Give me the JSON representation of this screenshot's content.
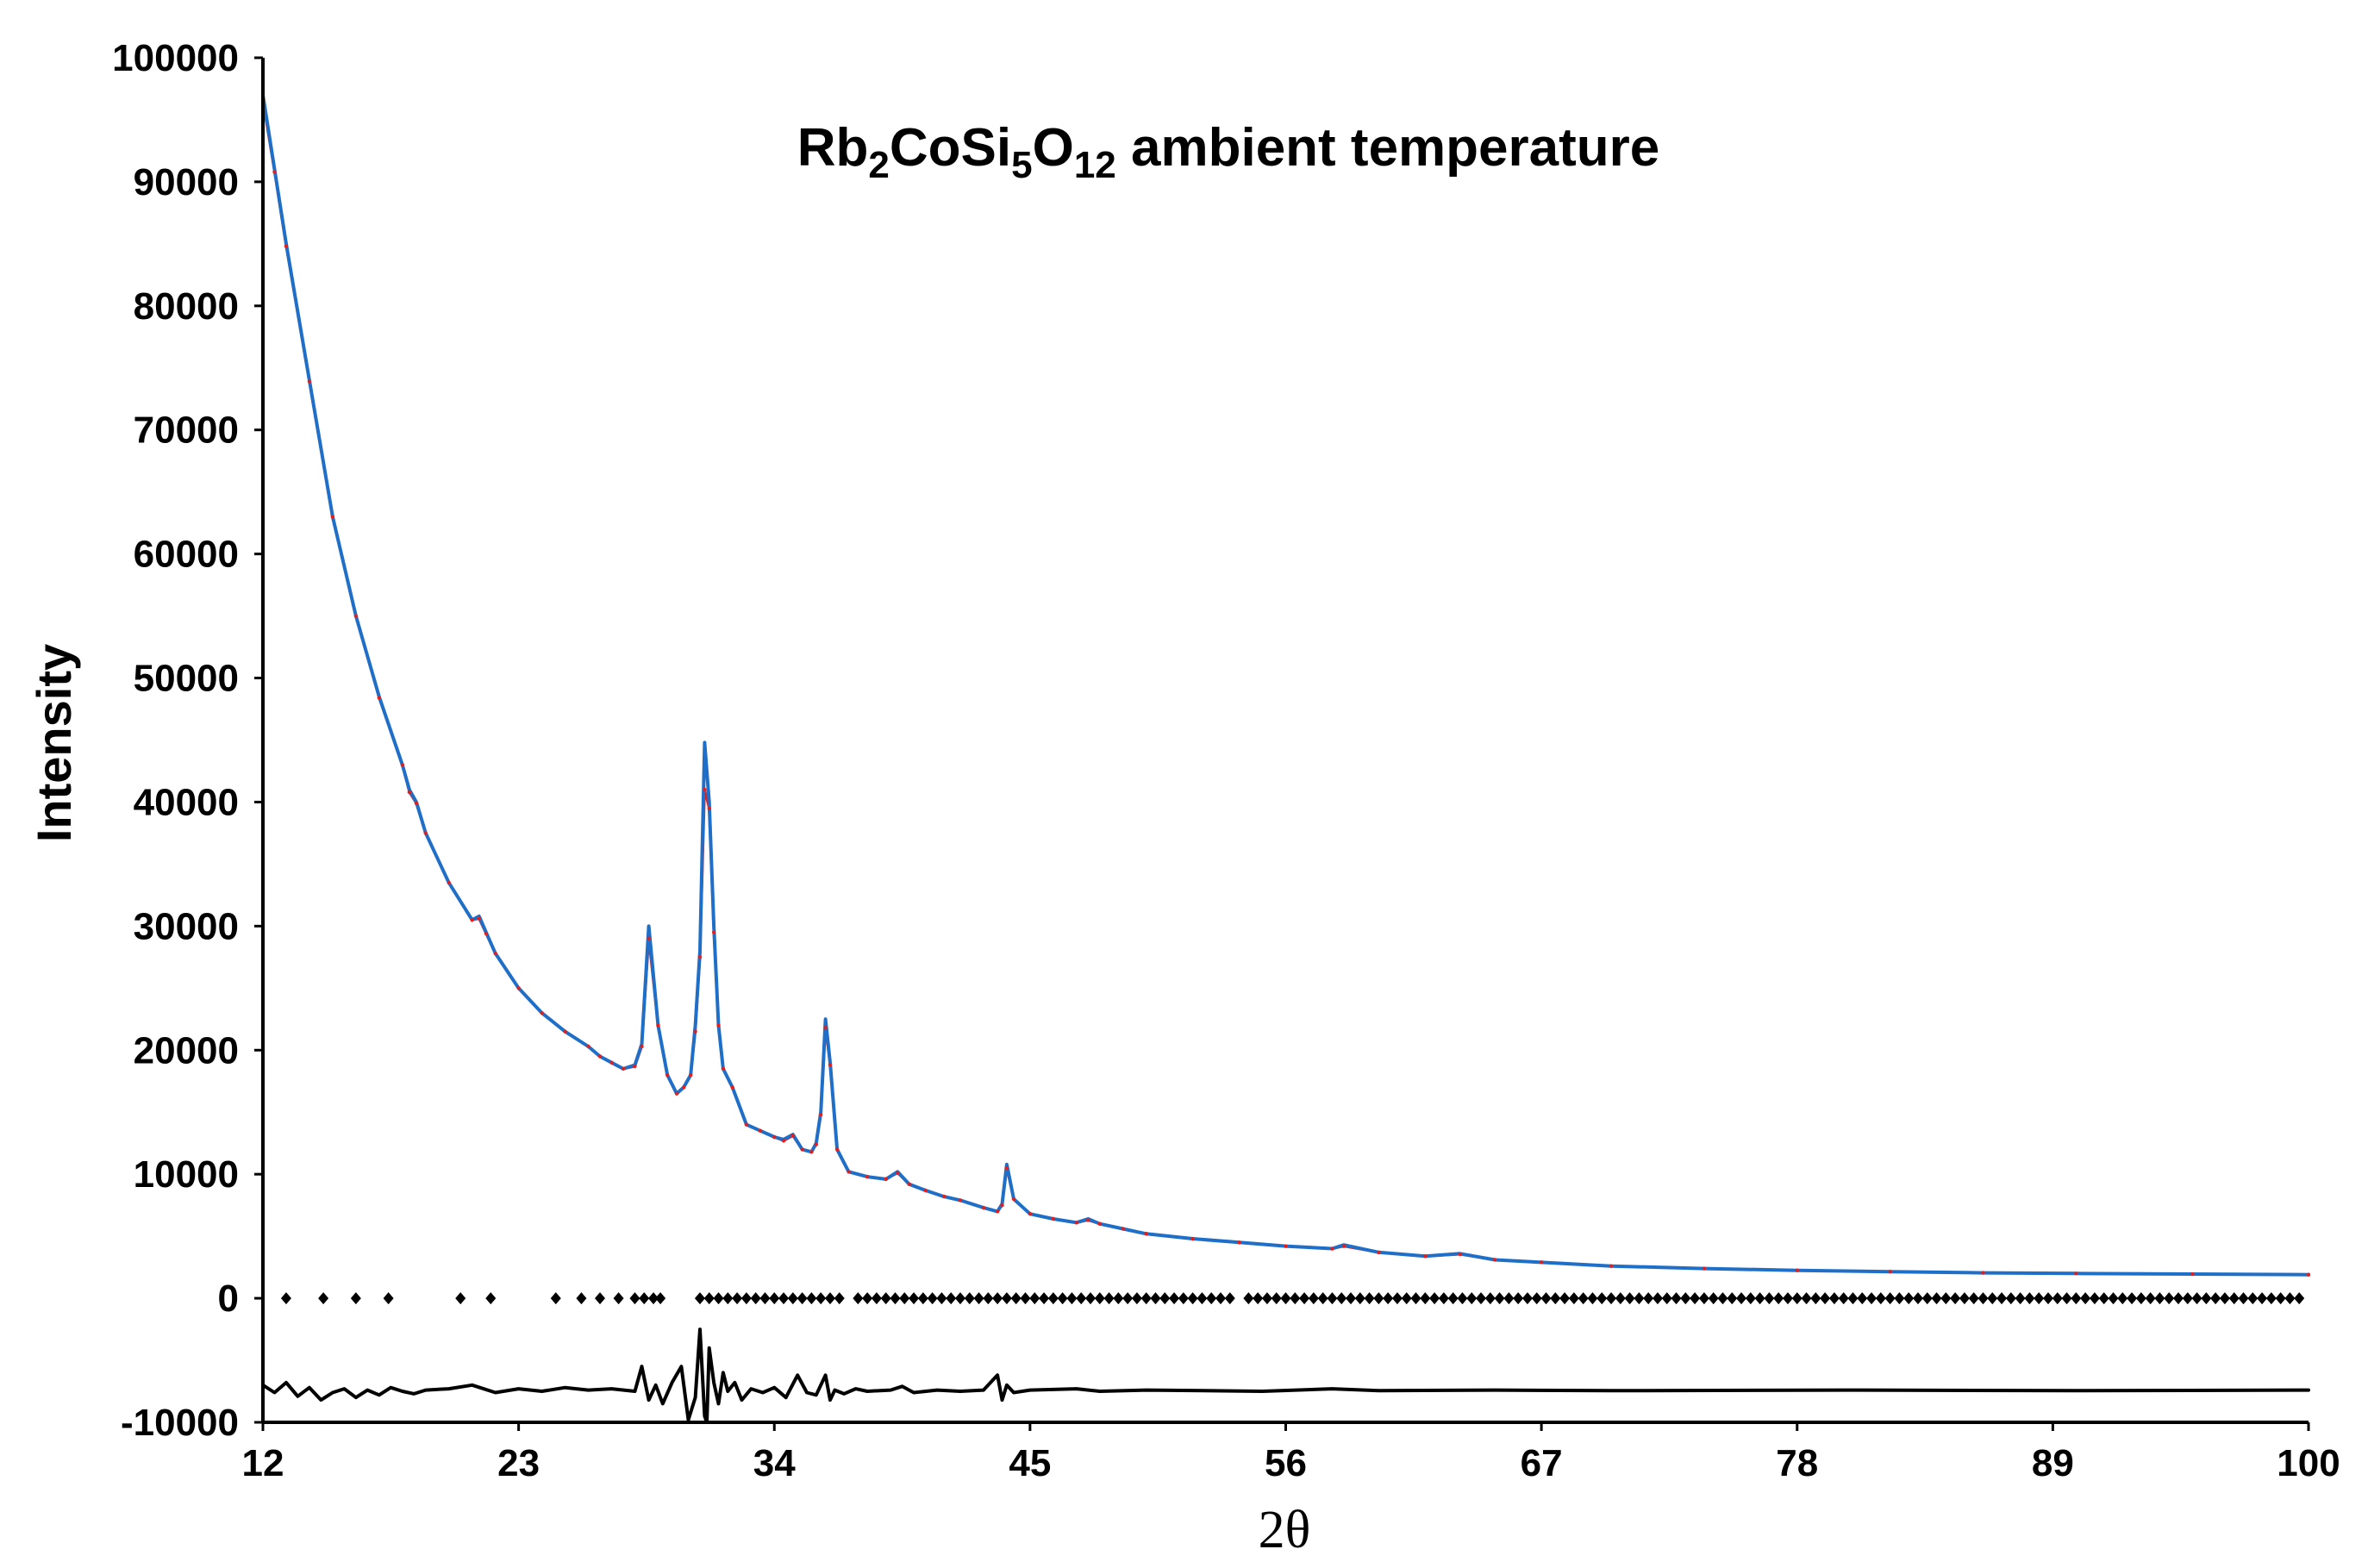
{
  "chart_data": {
    "type": "line",
    "title_main": "Rb",
    "title_parts": [
      {
        "text": "Rb",
        "sub": false
      },
      {
        "text": "2",
        "sub": true
      },
      {
        "text": "CoSi",
        "sub": false
      },
      {
        "text": "5",
        "sub": true
      },
      {
        "text": "O",
        "sub": false
      },
      {
        "text": "12",
        "sub": true
      },
      {
        "text": " ambient temperature",
        "sub": false
      }
    ],
    "xlabel": "2θ",
    "ylabel": "Intensity",
    "xlim": [
      12,
      100
    ],
    "ylim": [
      -10000,
      100000
    ],
    "xticks": [
      12,
      23,
      34,
      45,
      56,
      67,
      78,
      89,
      100
    ],
    "yticks": [
      -10000,
      0,
      10000,
      20000,
      30000,
      40000,
      50000,
      60000,
      70000,
      80000,
      90000,
      100000
    ],
    "grid": false,
    "legend": "none",
    "colors": {
      "observed": "#1f6fc8",
      "calculated": "#e02020",
      "difference": "#000000",
      "reflections": "#000000"
    },
    "series": [
      {
        "role": "observed",
        "x": [
          12,
          12.5,
          13,
          14,
          15,
          16,
          17,
          18,
          18.3,
          18.6,
          19,
          20,
          21,
          21.3,
          21.6,
          22,
          23,
          24,
          25,
          26,
          26.5,
          27,
          27.5,
          28,
          28.3,
          28.6,
          29.0,
          29.4,
          29.8,
          30.1,
          30.4,
          30.6,
          30.8,
          31.0,
          31.2,
          31.4,
          31.6,
          31.8,
          32.2,
          32.8,
          33.4,
          34.0,
          34.4,
          34.8,
          35.2,
          35.6,
          35.8,
          36.0,
          36.2,
          36.4,
          36.7,
          37.2,
          38,
          38.8,
          39.3,
          39.8,
          40.5,
          41.3,
          42,
          43,
          43.6,
          43.8,
          44.0,
          44.3,
          45,
          46,
          47,
          47.5,
          48,
          49,
          50,
          52,
          54,
          56,
          58,
          58.5,
          60,
          62,
          63.5,
          65,
          67,
          70,
          74,
          78,
          82,
          86,
          90,
          95,
          100
        ],
        "y": [
          97000,
          91000,
          85000,
          74000,
          63000,
          55000,
          48500,
          43000,
          41000,
          40000,
          37500,
          33500,
          30500,
          30800,
          29500,
          27800,
          25000,
          23000,
          21500,
          20300,
          19500,
          19000,
          18500,
          18800,
          20500,
          30000,
          22000,
          18000,
          16500,
          17000,
          18000,
          22000,
          28000,
          44800,
          40000,
          30000,
          22000,
          18500,
          17000,
          14000,
          13500,
          13000,
          12800,
          13200,
          12000,
          11800,
          12500,
          15000,
          22500,
          19000,
          12000,
          10200,
          9800,
          9600,
          10200,
          9200,
          8700,
          8200,
          7900,
          7300,
          7000,
          7600,
          10800,
          8000,
          6800,
          6400,
          6100,
          6400,
          6000,
          5600,
          5200,
          4800,
          4500,
          4200,
          4000,
          4300,
          3700,
          3400,
          3600,
          3100,
          2900,
          2600,
          2400,
          2250,
          2150,
          2050,
          2000,
          1950,
          1900
        ]
      },
      {
        "role": "calculated",
        "x": [
          12,
          12.5,
          13,
          14,
          15,
          16,
          17,
          18,
          18.3,
          18.6,
          19,
          20,
          21,
          21.3,
          21.6,
          22,
          23,
          24,
          25,
          26,
          26.5,
          27,
          27.5,
          28,
          28.3,
          28.6,
          29.0,
          29.4,
          29.8,
          30.1,
          30.4,
          30.6,
          30.8,
          31.0,
          31.2,
          31.4,
          31.6,
          31.8,
          32.2,
          32.8,
          33.4,
          34.0,
          34.4,
          34.8,
          35.2,
          35.6,
          35.8,
          36.0,
          36.2,
          36.4,
          36.7,
          37.2,
          38,
          38.8,
          39.3,
          39.8,
          40.5,
          41.3,
          42,
          43,
          43.6,
          43.8,
          44.0,
          44.3,
          45,
          46,
          47,
          47.5,
          48,
          49,
          50,
          52,
          54,
          56,
          58,
          58.5,
          60,
          62,
          63.5,
          65,
          67,
          70,
          74,
          78,
          82,
          86,
          90,
          95,
          100
        ],
        "y": [
          96500,
          90800,
          84800,
          73900,
          63000,
          55000,
          48400,
          43000,
          40800,
          39900,
          37500,
          33500,
          30500,
          30600,
          29400,
          27800,
          25000,
          23000,
          21500,
          20300,
          19500,
          19000,
          18500,
          18700,
          20300,
          29000,
          22000,
          18000,
          16500,
          17000,
          18000,
          21500,
          27500,
          41000,
          39500,
          29500,
          22000,
          18500,
          17000,
          14000,
          13500,
          13000,
          12700,
          13100,
          12000,
          11800,
          12400,
          14800,
          21800,
          18800,
          12000,
          10200,
          9800,
          9600,
          10100,
          9200,
          8700,
          8200,
          7900,
          7300,
          7000,
          7500,
          10500,
          8000,
          6800,
          6400,
          6100,
          6300,
          6000,
          5600,
          5200,
          4800,
          4500,
          4200,
          4000,
          4200,
          3700,
          3400,
          3550,
          3100,
          2900,
          2600,
          2400,
          2250,
          2150,
          2050,
          2000,
          1950,
          1900
        ]
      },
      {
        "role": "difference",
        "x": [
          12,
          12.5,
          13,
          13.5,
          14,
          14.5,
          15,
          15.5,
          16,
          16.5,
          17,
          17.5,
          18,
          18.5,
          19,
          20,
          21,
          22,
          23,
          24,
          25,
          26,
          27,
          28,
          28.3,
          28.6,
          28.9,
          29.2,
          29.6,
          30.0,
          30.3,
          30.6,
          30.8,
          31.0,
          31.1,
          31.2,
          31.4,
          31.6,
          31.8,
          32.0,
          32.3,
          32.6,
          33.0,
          33.5,
          34.0,
          34.5,
          35.0,
          35.4,
          35.8,
          36.0,
          36.2,
          36.4,
          36.6,
          37.0,
          37.5,
          38,
          39,
          39.5,
          40,
          41,
          42,
          43,
          43.6,
          43.8,
          44.0,
          44.3,
          45,
          47,
          48,
          50,
          55,
          58,
          60,
          65,
          70,
          80,
          90,
          100
        ],
        "y": [
          -7000,
          -7600,
          -6800,
          -7900,
          -7200,
          -8200,
          -7600,
          -7300,
          -8000,
          -7400,
          -7800,
          -7200,
          -7500,
          -7700,
          -7400,
          -7300,
          -7000,
          -7600,
          -7300,
          -7500,
          -7200,
          -7400,
          -7300,
          -7500,
          -5500,
          -8200,
          -7000,
          -8500,
          -6800,
          -5500,
          -9800,
          -8000,
          -2500,
          -9500,
          -10000,
          -4000,
          -6800,
          -8500,
          -6000,
          -7500,
          -6800,
          -8200,
          -7300,
          -7600,
          -7200,
          -8000,
          -6200,
          -7600,
          -7800,
          -7000,
          -6200,
          -8200,
          -7400,
          -7700,
          -7300,
          -7500,
          -7400,
          -7100,
          -7600,
          -7400,
          -7500,
          -7400,
          -6200,
          -8200,
          -7000,
          -7600,
          -7400,
          -7300,
          -7500,
          -7400,
          -7500,
          -7300,
          -7450,
          -7400,
          -7450,
          -7400,
          -7450,
          -7400
        ]
      }
    ],
    "reflection_markers": {
      "y": 0,
      "x": [
        13,
        14.6,
        16,
        17.4,
        20.5,
        21.8,
        24.6,
        25.7,
        26.5,
        27.3,
        28.0,
        28.4,
        28.8,
        29.1,
        30.8,
        31.2,
        31.6,
        32.0,
        32.4,
        32.8,
        33.2,
        33.6,
        34.0,
        34.4,
        34.8,
        35.2,
        35.6,
        36.0,
        36.4,
        36.8,
        37.6,
        38.0,
        38.4,
        38.8,
        39.2,
        39.6,
        40.0,
        40.4,
        40.8,
        41.2,
        41.6,
        42.0,
        42.4,
        42.8,
        43.2,
        43.6,
        44.0,
        44.4,
        44.8,
        45.2,
        45.6,
        46.0,
        46.4,
        46.8,
        47.2,
        47.6,
        48.0,
        48.4,
        48.8,
        49.2,
        49.6,
        50.0,
        50.4,
        50.8,
        51.2,
        51.6,
        52.0,
        52.4,
        52.8,
        53.2,
        53.6,
        54.4,
        54.8,
        55.2,
        55.6,
        56.0,
        56.4,
        56.8,
        57.2,
        57.6,
        58.0,
        58.4,
        58.8,
        59.2,
        59.6,
        60.0,
        60.4,
        60.8,
        61.2,
        61.6,
        62.0,
        62.4,
        62.8,
        63.2,
        63.6,
        64.0,
        64.4,
        64.8,
        65.2,
        65.6,
        66.0,
        66.4,
        66.8,
        67.2,
        67.6,
        68.0,
        68.4,
        68.8,
        69.2,
        69.6,
        70.0,
        70.4,
        70.8,
        71.2,
        71.6,
        72.0,
        72.4,
        72.8,
        73.2,
        73.6,
        74.0,
        74.4,
        74.8,
        75.2,
        75.6,
        76.0,
        76.4,
        76.8,
        77.2,
        77.6,
        78.0,
        78.4,
        78.8,
        79.2,
        79.6,
        80.0,
        80.4,
        80.8,
        81.2,
        81.6,
        82.0,
        82.4,
        82.8,
        83.2,
        83.6,
        84.0,
        84.4,
        84.8,
        85.2,
        85.6,
        86.0,
        86.4,
        86.8,
        87.2,
        87.6,
        88.0,
        88.4,
        88.8,
        89.2,
        89.6,
        90.0,
        90.4,
        90.8,
        91.2,
        91.6,
        92.0,
        92.4,
        92.8,
        93.2,
        93.6,
        94.0,
        94.4,
        94.8,
        95.2,
        95.6,
        96.0,
        96.4,
        96.8,
        97.2,
        97.6,
        98.0,
        98.4,
        98.8,
        99.2,
        99.6
      ]
    }
  }
}
